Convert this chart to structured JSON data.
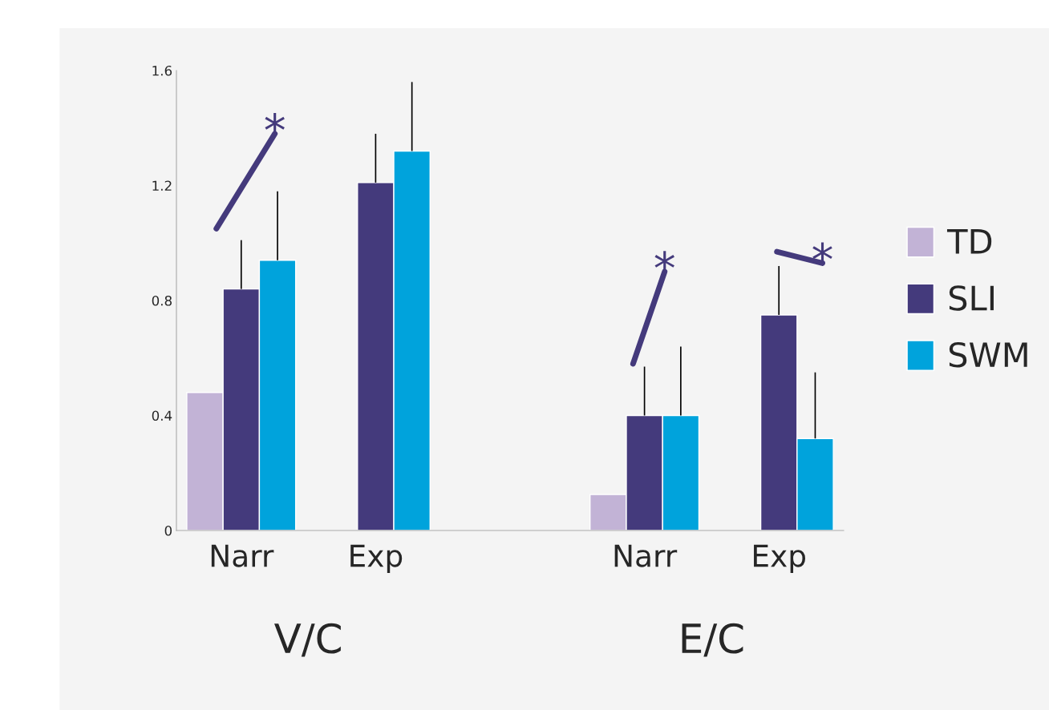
{
  "chart_data": {
    "type": "bar",
    "categories": [
      "Narr",
      "Exp",
      null,
      "Narr",
      "Exp"
    ],
    "series": [
      {
        "name": "TD",
        "color": "#c2b3d6",
        "values": [
          0.48,
          null,
          null,
          0.125,
          null
        ]
      },
      {
        "name": "SLI",
        "color": "#443a7c",
        "values": [
          0.84,
          1.21,
          null,
          0.4,
          0.75
        ],
        "errors": [
          [
            0.84,
            1.01
          ],
          [
            1.21,
            1.38
          ],
          null,
          [
            0.4,
            0.57
          ],
          [
            0.75,
            0.92
          ]
        ]
      },
      {
        "name": "SWM",
        "color": "#00a3dc",
        "values": [
          0.94,
          1.32,
          null,
          0.4,
          0.32
        ],
        "errors": [
          [
            0.94,
            1.18
          ],
          [
            1.32,
            1.56
          ],
          null,
          [
            0.4,
            0.64
          ],
          [
            0.32,
            0.55
          ]
        ]
      }
    ],
    "ylim": [
      0,
      1.6
    ],
    "yticks": [
      0,
      0.4,
      0.8,
      1.2,
      1.6
    ],
    "annotations": [
      "V/C",
      "E/C",
      "*",
      "*",
      "*"
    ],
    "legend": "right",
    "grid": false
  }
}
